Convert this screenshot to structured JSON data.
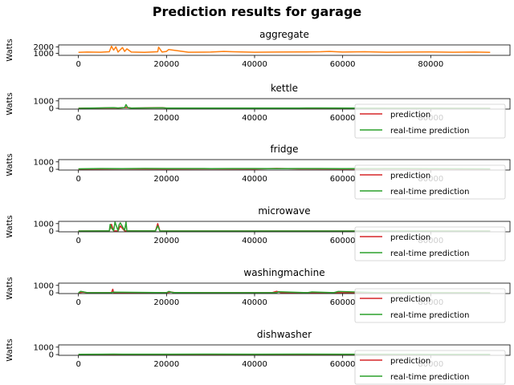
{
  "figure": {
    "suptitle": "Prediction results for garage"
  },
  "colors": {
    "aggregate": "#ff7f0e",
    "prediction": "#d62728",
    "realtime": "#2ca02c"
  },
  "chart_data": [
    {
      "type": "line",
      "title": "aggregate",
      "ylabel": "Watts",
      "xlim": [
        -4500,
        98000
      ],
      "ylim": [
        700,
        2300
      ],
      "xticks": [
        0,
        20000,
        40000,
        60000,
        80000
      ],
      "yticks": [
        1000,
        2000
      ],
      "legend": null,
      "series": [
        {
          "name": "",
          "color": "#ff7f0e",
          "x": [
            0,
            2000,
            5000,
            7000,
            7500,
            8000,
            8500,
            9000,
            10000,
            10500,
            11000,
            12000,
            15000,
            18000,
            18200,
            19000,
            20000,
            20500,
            25000,
            30000,
            33000,
            35000,
            40000,
            45000,
            50000,
            55000,
            57000,
            60000,
            65000,
            70000,
            75000,
            80000,
            85000,
            90000,
            93500
          ],
          "y": [
            1150,
            1200,
            1180,
            1250,
            2100,
            1500,
            2000,
            1200,
            1900,
            1300,
            1700,
            1200,
            1150,
            1250,
            1950,
            1200,
            1300,
            1600,
            1180,
            1200,
            1300,
            1250,
            1180,
            1200,
            1220,
            1250,
            1300,
            1200,
            1250,
            1180,
            1200,
            1220,
            1180,
            1200,
            1150
          ]
        }
      ]
    },
    {
      "type": "line",
      "title": "kettle",
      "ylabel": "Watts",
      "xlim": [
        -4500,
        98000
      ],
      "ylim": [
        -100,
        1300
      ],
      "xticks": [
        0,
        20000,
        40000,
        60000,
        80000
      ],
      "yticks": [
        0,
        1000
      ],
      "legend": "lower-right",
      "series": [
        {
          "name": "prediction",
          "color": "#d62728",
          "x": [
            0,
            8000,
            9000,
            11000,
            12000,
            19000,
            20000,
            50000,
            55000,
            70000,
            93500
          ],
          "y": [
            10,
            60,
            40,
            120,
            30,
            80,
            40,
            30,
            40,
            20,
            10
          ]
        },
        {
          "name": "real-time prediction",
          "color": "#2ca02c",
          "x": [
            0,
            8000,
            9000,
            10500,
            10800,
            11200,
            12000,
            19000,
            20000,
            50000,
            55000,
            70000,
            93500
          ],
          "y": [
            10,
            80,
            50,
            100,
            500,
            90,
            40,
            70,
            30,
            40,
            50,
            20,
            10
          ]
        }
      ]
    },
    {
      "type": "line",
      "title": "fridge",
      "ylabel": "Watts",
      "xlim": [
        -4500,
        98000
      ],
      "ylim": [
        -100,
        1300
      ],
      "xticks": [
        0,
        20000,
        40000,
        60000,
        80000
      ],
      "yticks": [
        0,
        1000
      ],
      "legend": "lower-right",
      "series": [
        {
          "name": "prediction",
          "color": "#d62728",
          "x": [
            0,
            10000,
            20000,
            30000,
            40000,
            45000,
            50000,
            60000,
            70000,
            80000,
            93500
          ],
          "y": [
            40,
            60,
            50,
            60,
            55,
            120,
            60,
            50,
            60,
            50,
            40
          ]
        },
        {
          "name": "real-time prediction",
          "color": "#2ca02c",
          "x": [
            0,
            5000,
            10000,
            15000,
            20000,
            25000,
            30000,
            35000,
            40000,
            45000,
            50000,
            55000,
            60000,
            70000,
            80000,
            93500
          ],
          "y": [
            60,
            110,
            90,
            120,
            100,
            110,
            90,
            100,
            110,
            80,
            100,
            110,
            90,
            100,
            90,
            60
          ]
        }
      ]
    },
    {
      "type": "line",
      "title": "microwave",
      "ylabel": "Watts",
      "xlim": [
        -4500,
        98000
      ],
      "ylim": [
        -100,
        1300
      ],
      "xticks": [
        0,
        20000,
        40000,
        60000,
        80000
      ],
      "yticks": [
        0,
        1000
      ],
      "legend": "lower-right",
      "series": [
        {
          "name": "prediction",
          "color": "#d62728",
          "x": [
            0,
            7000,
            7500,
            8000,
            9000,
            9500,
            10500,
            11000,
            17500,
            18000,
            18500,
            20000,
            93500
          ],
          "y": [
            10,
            20,
            900,
            30,
            20,
            700,
            20,
            30,
            20,
            1000,
            20,
            10,
            10
          ]
        },
        {
          "name": "real-time prediction",
          "color": "#2ca02c",
          "x": [
            0,
            7000,
            7200,
            7500,
            8000,
            8300,
            9000,
            9200,
            9500,
            10500,
            10800,
            11000,
            17500,
            18000,
            18500,
            20000,
            93500
          ],
          "y": [
            10,
            20,
            900,
            400,
            50,
            1200,
            30,
            800,
            1100,
            100,
            1200,
            40,
            20,
            700,
            20,
            10,
            10
          ]
        }
      ]
    },
    {
      "type": "line",
      "title": "washingmachine",
      "ylabel": "Watts",
      "xlim": [
        -4500,
        98000
      ],
      "ylim": [
        -100,
        1300
      ],
      "xticks": [
        0,
        20000,
        40000,
        60000,
        80000
      ],
      "yticks": [
        0,
        1000
      ],
      "legend": "lower-right",
      "series": [
        {
          "name": "prediction",
          "color": "#d62728",
          "x": [
            0,
            1000,
            2000,
            7500,
            7800,
            8000,
            20000,
            21000,
            22000,
            44000,
            45000,
            46000,
            60000,
            93500
          ],
          "y": [
            10,
            80,
            20,
            20,
            480,
            20,
            20,
            100,
            20,
            20,
            200,
            20,
            20,
            10
          ]
        },
        {
          "name": "real-time prediction",
          "color": "#2ca02c",
          "x": [
            0,
            500,
            1000,
            2000,
            7500,
            8000,
            20000,
            20500,
            21500,
            45000,
            45500,
            52000,
            53000,
            58000,
            59000,
            68000,
            93500
          ],
          "y": [
            10,
            200,
            150,
            20,
            20,
            80,
            20,
            180,
            30,
            20,
            150,
            20,
            120,
            20,
            180,
            20,
            10
          ]
        }
      ]
    },
    {
      "type": "line",
      "title": "dishwasher",
      "ylabel": "Watts",
      "xlim": [
        -4500,
        98000
      ],
      "ylim": [
        -100,
        1300
      ],
      "xticks": [
        0,
        20000,
        40000,
        60000,
        80000
      ],
      "yticks": [
        0,
        1000
      ],
      "legend": "lower-right",
      "series": [
        {
          "name": "prediction",
          "color": "#d62728",
          "x": [
            0,
            10000,
            20000,
            30000,
            40000,
            50000,
            60000,
            70000,
            80000,
            93500
          ],
          "y": [
            20,
            40,
            30,
            40,
            30,
            40,
            30,
            40,
            30,
            20
          ]
        },
        {
          "name": "real-time prediction",
          "color": "#2ca02c",
          "x": [
            0,
            8000,
            10000,
            20000,
            30000,
            40000,
            50000,
            60000,
            70000,
            80000,
            93500
          ],
          "y": [
            30,
            60,
            50,
            50,
            60,
            50,
            60,
            50,
            50,
            40,
            30
          ]
        }
      ]
    }
  ]
}
